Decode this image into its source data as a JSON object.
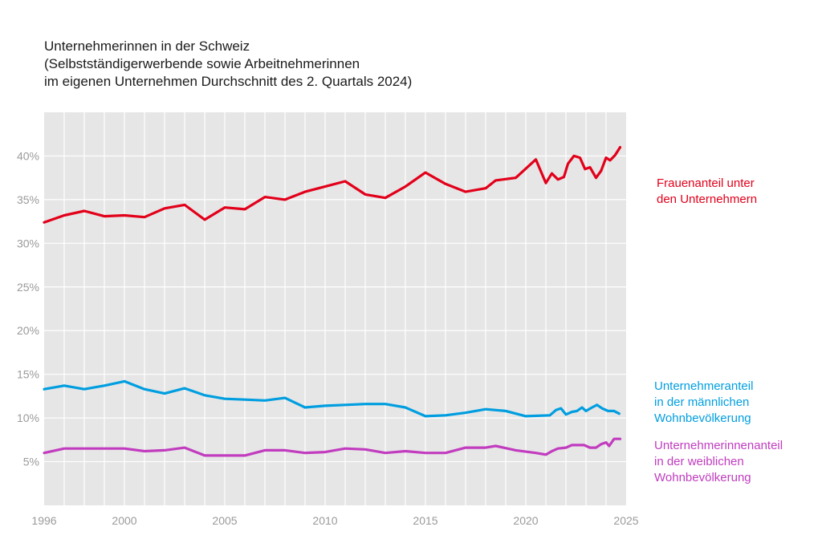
{
  "title": {
    "line1": "Unternehmerinnen in der Schweiz",
    "line2": "(Selbstständigerwerbende sowie Arbeitnehmerinnen",
    "line3": "im eigenen Unternehmen Durchschnitt des 2. Quartals 2024)"
  },
  "colors": {
    "plot_bg": "#e6e6e6",
    "grid": "#ffffff",
    "red": "#e2001a",
    "blue": "#009ee0",
    "purple": "#c13cbf"
  },
  "chart_data": {
    "type": "line",
    "title": "Unternehmerinnen in der Schweiz (Selbstständigerwerbende sowie Arbeitnehmerinnen im eigenen Unternehmen Durchschnitt des 2. Quartals 2024)",
    "xlim": [
      1996,
      2025
    ],
    "ylim": [
      0,
      45
    ],
    "x_ticks": [
      1996,
      2000,
      2005,
      2010,
      2015,
      2020,
      2025
    ],
    "x_tick_labels": [
      "1996",
      "2000",
      "2005",
      "2010",
      "2015",
      "2020",
      "2025"
    ],
    "y_ticks": [
      5,
      10,
      15,
      20,
      25,
      30,
      35,
      40
    ],
    "y_tick_labels": [
      "5%",
      "10%",
      "15%",
      "20%",
      "25%",
      "30%",
      "35%",
      "40%"
    ],
    "grid": true,
    "series": [
      {
        "name": "Frauenanteil unter den Unternehmern",
        "color": "#e2001a",
        "points": [
          [
            1996,
            32.4
          ],
          [
            1997,
            33.2
          ],
          [
            1998,
            33.7
          ],
          [
            1999,
            33.1
          ],
          [
            2000,
            33.2
          ],
          [
            2001,
            33.0
          ],
          [
            2002,
            34.0
          ],
          [
            2003,
            34.4
          ],
          [
            2004,
            32.7
          ],
          [
            2005,
            34.1
          ],
          [
            2006,
            33.9
          ],
          [
            2007,
            35.3
          ],
          [
            2008,
            35.0
          ],
          [
            2009,
            35.9
          ],
          [
            2010,
            36.5
          ],
          [
            2011,
            37.1
          ],
          [
            2012,
            35.6
          ],
          [
            2013,
            35.2
          ],
          [
            2014,
            36.5
          ],
          [
            2015,
            38.1
          ],
          [
            2016,
            36.8
          ],
          [
            2017,
            35.9
          ],
          [
            2018,
            36.3
          ],
          [
            2018.5,
            37.2
          ],
          [
            2019.5,
            37.5
          ],
          [
            2020.5,
            39.6
          ],
          [
            2021,
            36.9
          ],
          [
            2021.3,
            38.0
          ],
          [
            2021.6,
            37.3
          ],
          [
            2021.9,
            37.6
          ],
          [
            2022.1,
            39.1
          ],
          [
            2022.4,
            40.0
          ],
          [
            2022.7,
            39.8
          ],
          [
            2022.95,
            38.5
          ],
          [
            2023.2,
            38.7
          ],
          [
            2023.5,
            37.5
          ],
          [
            2023.75,
            38.3
          ],
          [
            2024.0,
            39.8
          ],
          [
            2024.2,
            39.5
          ],
          [
            2024.45,
            40.1
          ],
          [
            2024.7,
            41.0
          ]
        ]
      },
      {
        "name": "Unternehmeranteil in der männlichen Wohnbevölkerung",
        "color": "#009ee0",
        "points": [
          [
            1996,
            13.3
          ],
          [
            1997,
            13.7
          ],
          [
            1998,
            13.3
          ],
          [
            1999,
            13.7
          ],
          [
            2000,
            14.2
          ],
          [
            2001,
            13.3
          ],
          [
            2002,
            12.8
          ],
          [
            2003,
            13.4
          ],
          [
            2004,
            12.6
          ],
          [
            2005,
            12.2
          ],
          [
            2006,
            12.1
          ],
          [
            2007,
            12.0
          ],
          [
            2008,
            12.3
          ],
          [
            2009,
            11.2
          ],
          [
            2010,
            11.4
          ],
          [
            2011,
            11.5
          ],
          [
            2012,
            11.6
          ],
          [
            2013,
            11.6
          ],
          [
            2014,
            11.2
          ],
          [
            2015,
            10.2
          ],
          [
            2016,
            10.3
          ],
          [
            2017,
            10.6
          ],
          [
            2018,
            11.0
          ],
          [
            2019,
            10.8
          ],
          [
            2020,
            10.2
          ],
          [
            2021.2,
            10.3
          ],
          [
            2021.5,
            10.9
          ],
          [
            2021.75,
            11.1
          ],
          [
            2022.0,
            10.4
          ],
          [
            2022.3,
            10.7
          ],
          [
            2022.55,
            10.8
          ],
          [
            2022.8,
            11.2
          ],
          [
            2023.0,
            10.8
          ],
          [
            2023.3,
            11.2
          ],
          [
            2023.55,
            11.5
          ],
          [
            2023.8,
            11.1
          ],
          [
            2024.1,
            10.8
          ],
          [
            2024.4,
            10.8
          ],
          [
            2024.65,
            10.5
          ]
        ]
      },
      {
        "name": "Unternehmerinnenanteil in der weiblichen Wohnbevölkerung",
        "color": "#c13cbf",
        "points": [
          [
            1996,
            6.0
          ],
          [
            1997,
            6.5
          ],
          [
            1998,
            6.5
          ],
          [
            1999,
            6.5
          ],
          [
            2000,
            6.5
          ],
          [
            2001,
            6.2
          ],
          [
            2002,
            6.3
          ],
          [
            2003,
            6.6
          ],
          [
            2004,
            5.7
          ],
          [
            2005,
            5.7
          ],
          [
            2006,
            5.7
          ],
          [
            2007,
            6.3
          ],
          [
            2008,
            6.3
          ],
          [
            2009,
            6.0
          ],
          [
            2010,
            6.1
          ],
          [
            2011,
            6.5
          ],
          [
            2012,
            6.4
          ],
          [
            2013,
            6.0
          ],
          [
            2014,
            6.2
          ],
          [
            2015,
            6.0
          ],
          [
            2016,
            6.0
          ],
          [
            2017,
            6.6
          ],
          [
            2018,
            6.6
          ],
          [
            2018.5,
            6.8
          ],
          [
            2019.5,
            6.3
          ],
          [
            2020.5,
            6.0
          ],
          [
            2021,
            5.8
          ],
          [
            2021.3,
            6.2
          ],
          [
            2021.6,
            6.5
          ],
          [
            2022.0,
            6.6
          ],
          [
            2022.3,
            6.9
          ],
          [
            2022.6,
            6.9
          ],
          [
            2022.9,
            6.9
          ],
          [
            2023.2,
            6.6
          ],
          [
            2023.5,
            6.6
          ],
          [
            2023.75,
            7.0
          ],
          [
            2024.0,
            7.2
          ],
          [
            2024.15,
            6.8
          ],
          [
            2024.4,
            7.6
          ],
          [
            2024.7,
            7.6
          ]
        ]
      }
    ]
  },
  "legend": {
    "red": "Frauenanteil unter\nden Unternehmern",
    "blue": "Unternehmeranteil\nin der männlichen\nWohnbevölkerung",
    "purple": "Unternehmerinnenanteil\nin der weiblichen\nWohnbevölkerung"
  }
}
